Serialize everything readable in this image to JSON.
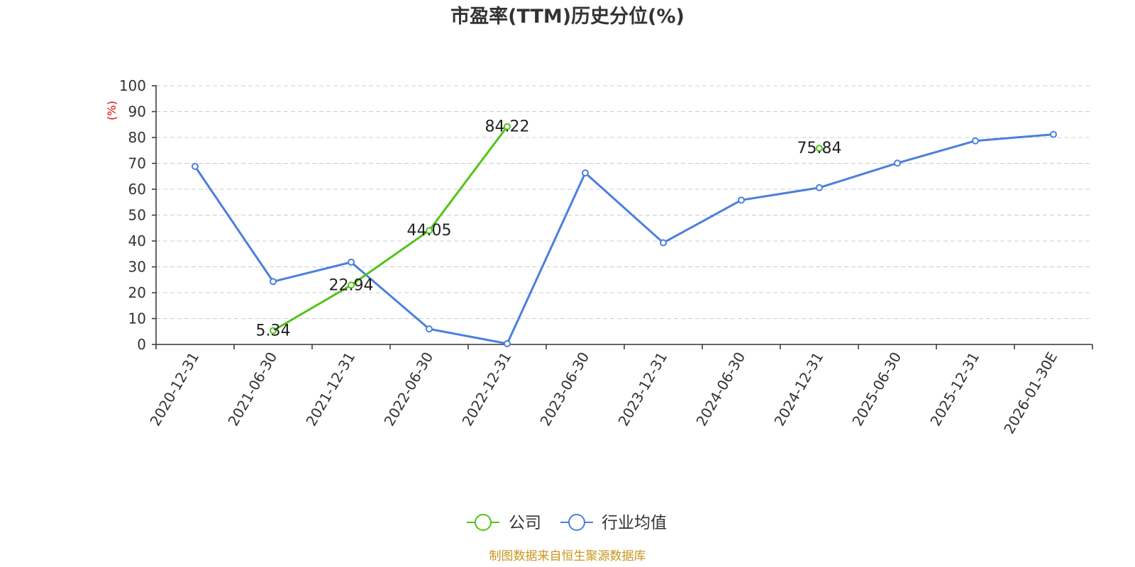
{
  "title": "市盈率(TTM)历史分位(%)",
  "source_note": "制图数据来自恒生聚源数据库",
  "chart_data": {
    "type": "line",
    "title": "市盈率(TTM)历史分位(%)",
    "ylabel": "(%)",
    "xlabel": "",
    "ylim": [
      0,
      100
    ],
    "yticks": [
      0,
      10,
      20,
      30,
      40,
      50,
      60,
      70,
      80,
      90,
      100
    ],
    "grid": true,
    "legend_position": "bottom-center",
    "categories": [
      "2020-12-31",
      "2021-06-30",
      "2021-12-31",
      "2022-06-30",
      "2022-12-31",
      "2023-06-30",
      "2023-12-31",
      "2024-06-30",
      "2024-12-31",
      "2025-06-30",
      "2025-12-31",
      "2026-01-30E"
    ],
    "series": [
      {
        "name": "公司",
        "color": "#52c41a",
        "values": [
          null,
          5.34,
          22.94,
          44.05,
          84.22,
          null,
          null,
          null,
          75.84,
          null,
          null,
          null
        ],
        "show_labels": true
      },
      {
        "name": "行业均值",
        "color": "#4a7fdd",
        "values": [
          68.8,
          24.3,
          31.8,
          6.0,
          0.3,
          66.3,
          39.3,
          55.8,
          60.6,
          70.1,
          78.7,
          81.2
        ],
        "show_labels": false
      }
    ]
  },
  "colors": {
    "ylabel": "#e60000",
    "source_note": "#c8961e",
    "title": "#333333"
  }
}
